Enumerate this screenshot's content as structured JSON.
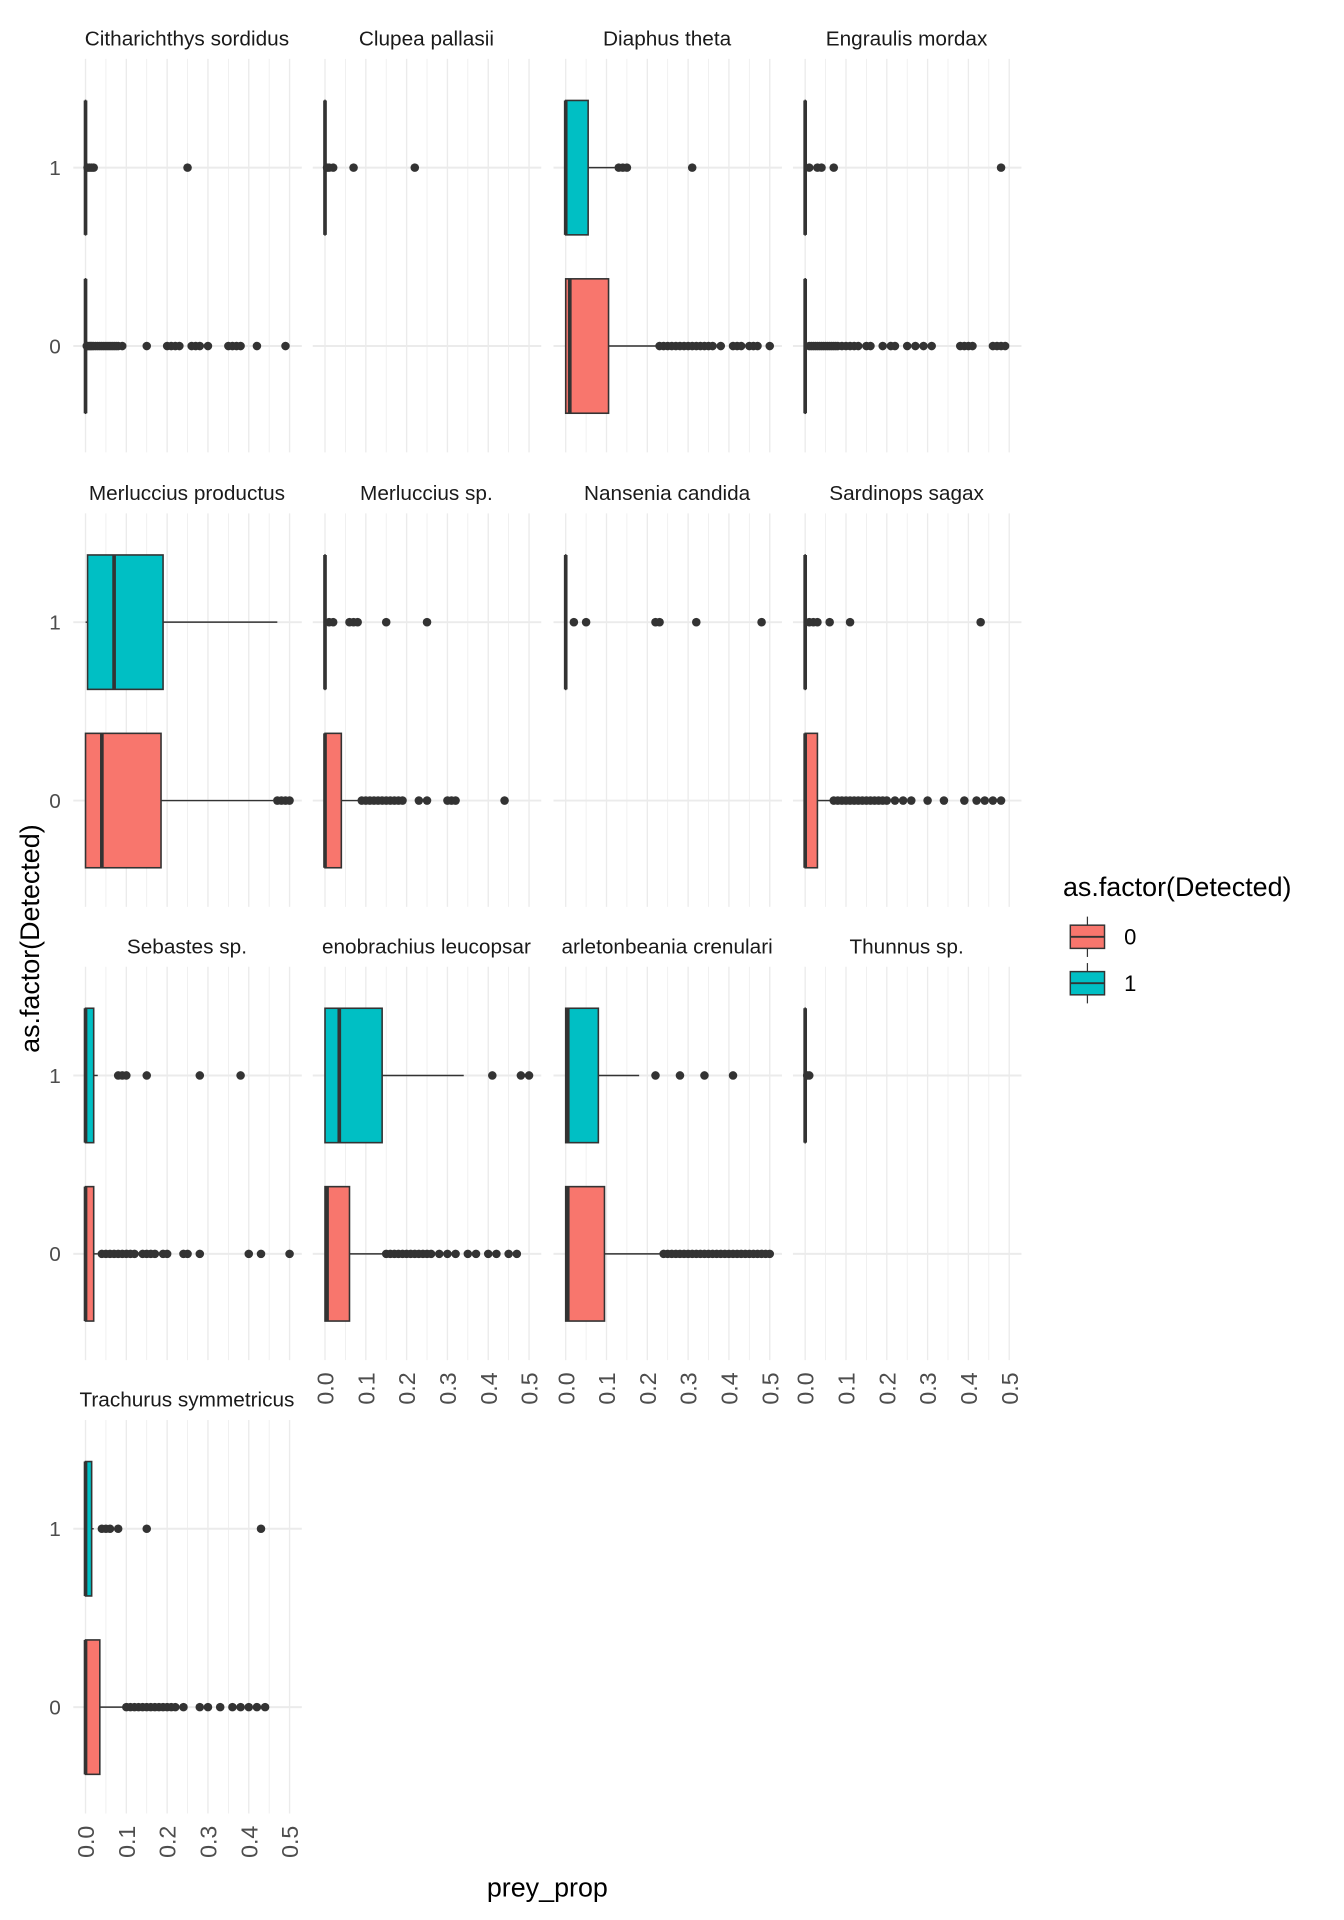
{
  "chart_data": {
    "type": "boxplot",
    "facet": "species",
    "xlabel": "prey_prop",
    "ylabel": "as.factor(Detected)",
    "xlim": [
      0,
      0.5
    ],
    "x_ticks": [
      "0.0",
      "0.1",
      "0.2",
      "0.3",
      "0.4",
      "0.5"
    ],
    "y_categories": [
      "0",
      "1"
    ],
    "grid": true,
    "legend": {
      "title": "as.factor(Detected)",
      "position": "right",
      "entries": [
        {
          "label": "0",
          "color": "#F8766D"
        },
        {
          "label": "1",
          "color": "#00BFC4"
        }
      ]
    },
    "colors": {
      "box_outline": "#333333",
      "grid": "#EBEBEB"
    },
    "panels": [
      {
        "title": "Citharichthys sordidus",
        "groups": {
          "1": {
            "min": 0,
            "q1": 0,
            "median": 0,
            "q3": 0,
            "max": 0,
            "outliers": [
              0.005,
              0.01,
              0.015,
              0.02,
              0.25
            ]
          },
          "0": {
            "min": 0,
            "q1": 0,
            "median": 0,
            "q3": 0,
            "max": 0,
            "outliers": [
              0.003,
              0.006,
              0.01,
              0.013,
              0.016,
              0.02,
              0.025,
              0.03,
              0.035,
              0.04,
              0.045,
              0.05,
              0.055,
              0.06,
              0.065,
              0.07,
              0.075,
              0.08,
              0.09,
              0.15,
              0.2,
              0.21,
              0.22,
              0.23,
              0.26,
              0.27,
              0.28,
              0.3,
              0.35,
              0.36,
              0.37,
              0.38,
              0.42,
              0.49
            ]
          }
        }
      },
      {
        "title": "Clupea pallasii",
        "groups": {
          "1": {
            "min": 0,
            "q1": 0,
            "median": 0,
            "q3": 0,
            "max": 0,
            "outliers": [
              0.005,
              0.01,
              0.02,
              0.07,
              0.22
            ]
          },
          "0": null
        }
      },
      {
        "title": "Diaphus theta",
        "groups": {
          "1": {
            "min": 0,
            "q1": 0,
            "median": 0,
            "q3": 0.055,
            "max": 0.12,
            "outliers": [
              0.13,
              0.14,
              0.15,
              0.31
            ]
          },
          "0": {
            "min": 0,
            "q1": 0,
            "median": 0.01,
            "q3": 0.105,
            "max": 0.22,
            "outliers": [
              0.23,
              0.24,
              0.25,
              0.26,
              0.27,
              0.28,
              0.29,
              0.3,
              0.31,
              0.32,
              0.33,
              0.34,
              0.35,
              0.36,
              0.38,
              0.41,
              0.42,
              0.43,
              0.45,
              0.46,
              0.47,
              0.5
            ]
          }
        }
      },
      {
        "title": "Engraulis mordax",
        "groups": {
          "1": {
            "min": 0,
            "q1": 0,
            "median": 0,
            "q3": 0,
            "max": 0,
            "outliers": [
              0.01,
              0.03,
              0.04,
              0.07,
              0.48
            ]
          },
          "0": {
            "min": 0,
            "q1": 0,
            "median": 0,
            "q3": 0,
            "max": 0,
            "outliers": [
              0.01,
              0.015,
              0.02,
              0.025,
              0.03,
              0.035,
              0.04,
              0.045,
              0.05,
              0.055,
              0.06,
              0.065,
              0.07,
              0.075,
              0.08,
              0.09,
              0.1,
              0.11,
              0.12,
              0.13,
              0.15,
              0.16,
              0.19,
              0.21,
              0.22,
              0.25,
              0.27,
              0.29,
              0.31,
              0.38,
              0.39,
              0.4,
              0.41,
              0.46,
              0.47,
              0.48,
              0.49
            ]
          }
        }
      },
      {
        "title": "Merluccius productus",
        "groups": {
          "1": {
            "min": 0,
            "q1": 0.005,
            "median": 0.07,
            "q3": 0.19,
            "max": 0.47,
            "outliers": []
          },
          "0": {
            "min": 0,
            "q1": 0,
            "median": 0.04,
            "q3": 0.185,
            "max": 0.46,
            "outliers": [
              0.47,
              0.48,
              0.49,
              0.5
            ]
          }
        }
      },
      {
        "title": "Merluccius sp.",
        "groups": {
          "1": {
            "min": 0,
            "q1": 0,
            "median": 0,
            "q3": 0,
            "max": 0,
            "outliers": [
              0.01,
              0.02,
              0.06,
              0.07,
              0.08,
              0.15,
              0.25
            ]
          },
          "0": {
            "min": 0,
            "q1": 0,
            "median": 0,
            "q3": 0.04,
            "max": 0.08,
            "outliers": [
              0.09,
              0.1,
              0.11,
              0.12,
              0.13,
              0.14,
              0.15,
              0.16,
              0.17,
              0.18,
              0.19,
              0.23,
              0.25,
              0.3,
              0.31,
              0.32,
              0.44
            ]
          }
        }
      },
      {
        "title": "Nansenia candida",
        "groups": {
          "1": {
            "min": 0,
            "q1": 0,
            "median": 0,
            "q3": 0,
            "max": 0,
            "outliers": [
              0.02,
              0.05,
              0.22,
              0.23,
              0.32,
              0.48
            ]
          },
          "0": null
        }
      },
      {
        "title": "Sardinops sagax",
        "groups": {
          "1": {
            "min": 0,
            "q1": 0,
            "median": 0,
            "q3": 0,
            "max": 0,
            "outliers": [
              0.01,
              0.02,
              0.03,
              0.06,
              0.11,
              0.43
            ]
          },
          "0": {
            "min": 0,
            "q1": 0,
            "median": 0,
            "q3": 0.03,
            "max": 0.065,
            "outliers": [
              0.07,
              0.08,
              0.09,
              0.1,
              0.11,
              0.12,
              0.13,
              0.14,
              0.15,
              0.16,
              0.17,
              0.18,
              0.19,
              0.2,
              0.22,
              0.24,
              0.26,
              0.3,
              0.34,
              0.39,
              0.42,
              0.44,
              0.46,
              0.48
            ]
          }
        }
      },
      {
        "title": "Sebastes sp.",
        "groups": {
          "1": {
            "min": 0,
            "q1": 0,
            "median": 0,
            "q3": 0.02,
            "max": 0.03,
            "outliers": [
              0.08,
              0.09,
              0.1,
              0.15,
              0.28,
              0.38
            ]
          },
          "0": {
            "min": 0,
            "q1": 0,
            "median": 0,
            "q3": 0.02,
            "max": 0.03,
            "outliers": [
              0.04,
              0.05,
              0.06,
              0.07,
              0.08,
              0.09,
              0.1,
              0.11,
              0.12,
              0.14,
              0.15,
              0.16,
              0.17,
              0.19,
              0.2,
              0.24,
              0.25,
              0.28,
              0.4,
              0.43,
              0.5
            ]
          }
        }
      },
      {
        "title": "enobrachius leucopsar",
        "groups": {
          "1": {
            "min": 0,
            "q1": 0,
            "median": 0.035,
            "q3": 0.14,
            "max": 0.34,
            "outliers": [
              0.41,
              0.48,
              0.5
            ]
          },
          "0": {
            "min": 0,
            "q1": 0,
            "median": 0.005,
            "q3": 0.06,
            "max": 0.14,
            "outliers": [
              0.15,
              0.16,
              0.17,
              0.18,
              0.19,
              0.2,
              0.21,
              0.22,
              0.23,
              0.24,
              0.25,
              0.26,
              0.28,
              0.3,
              0.32,
              0.35,
              0.37,
              0.4,
              0.42,
              0.45,
              0.47
            ]
          }
        }
      },
      {
        "title": "arletonbeania crenulari",
        "groups": {
          "1": {
            "min": 0,
            "q1": 0,
            "median": 0.005,
            "q3": 0.08,
            "max": 0.18,
            "outliers": [
              0.22,
              0.28,
              0.34,
              0.41
            ]
          },
          "0": {
            "min": 0,
            "q1": 0,
            "median": 0.005,
            "q3": 0.095,
            "max": 0.23,
            "outliers": [
              0.24,
              0.25,
              0.26,
              0.27,
              0.28,
              0.29,
              0.3,
              0.31,
              0.32,
              0.33,
              0.34,
              0.35,
              0.36,
              0.37,
              0.38,
              0.39,
              0.4,
              0.41,
              0.42,
              0.43,
              0.44,
              0.45,
              0.46,
              0.47,
              0.48,
              0.49,
              0.5
            ]
          }
        }
      },
      {
        "title": "Thunnus sp.",
        "groups": {
          "1": {
            "min": 0,
            "q1": 0,
            "median": 0,
            "q3": 0,
            "max": 0,
            "outliers": [
              0.005,
              0.01
            ]
          },
          "0": null
        }
      },
      {
        "title": "Trachurus symmetricus",
        "groups": {
          "1": {
            "min": 0,
            "q1": 0,
            "median": 0,
            "q3": 0.015,
            "max": 0.02,
            "outliers": [
              0.04,
              0.05,
              0.06,
              0.08,
              0.15,
              0.43
            ]
          },
          "0": {
            "min": 0,
            "q1": 0,
            "median": 0,
            "q3": 0.035,
            "max": 0.095,
            "outliers": [
              0.1,
              0.11,
              0.12,
              0.13,
              0.14,
              0.15,
              0.16,
              0.17,
              0.18,
              0.19,
              0.2,
              0.21,
              0.22,
              0.24,
              0.28,
              0.3,
              0.33,
              0.36,
              0.38,
              0.4,
              0.42,
              0.44
            ]
          }
        }
      }
    ]
  }
}
